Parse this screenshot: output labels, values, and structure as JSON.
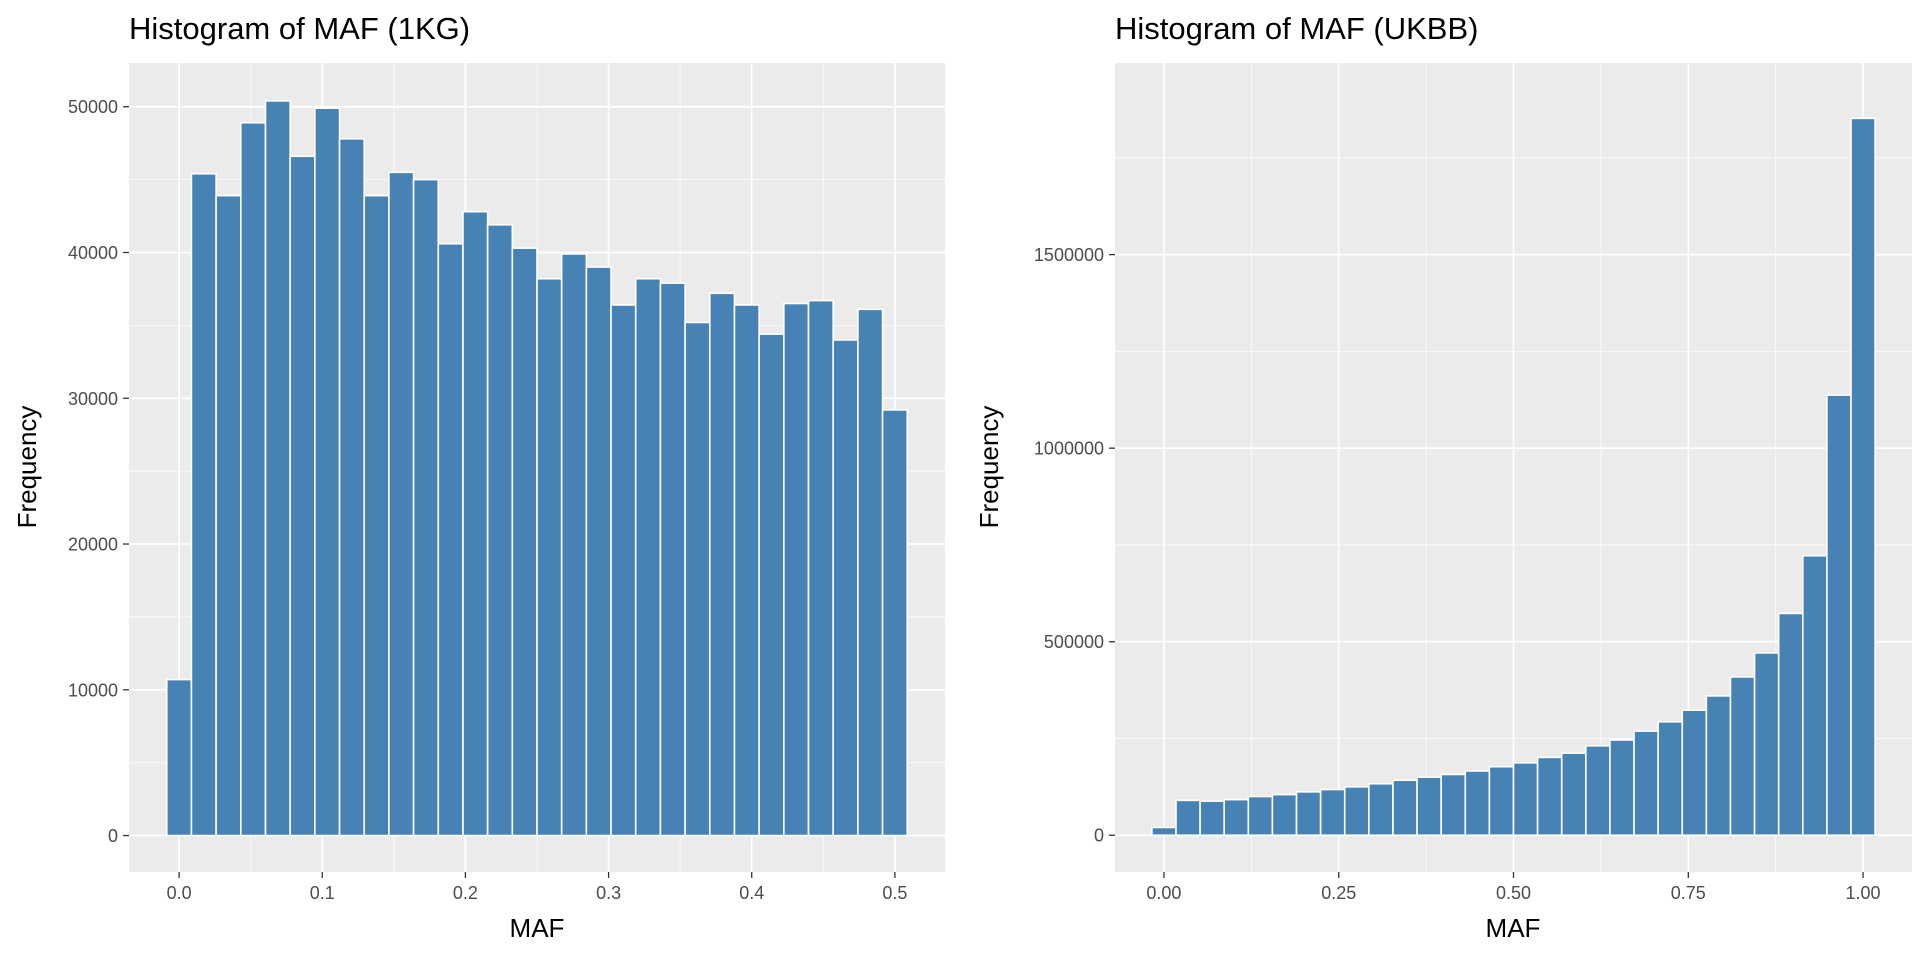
{
  "chart_data": [
    {
      "type": "bar",
      "title": "Histogram of MAF (1KG)",
      "xlabel": "MAF",
      "ylabel": "Frequency",
      "xlim": [
        -0.035,
        0.535
      ],
      "ylim": [
        -2500,
        53000
      ],
      "x_breaks": [
        0.0,
        0.1,
        0.2,
        0.3,
        0.4,
        0.5
      ],
      "x_tick_labels": [
        "0.0",
        "0.1",
        "0.2",
        "0.3",
        "0.4",
        "0.5"
      ],
      "y_breaks": [
        0,
        10000,
        20000,
        30000,
        40000,
        50000
      ],
      "y_tick_labels": [
        "0",
        "10000",
        "20000",
        "30000",
        "40000",
        "50000"
      ],
      "bin_width": 0.01724,
      "bin_centers": [
        0.0,
        0.01724,
        0.03448,
        0.05172,
        0.06897,
        0.08621,
        0.10345,
        0.12069,
        0.13793,
        0.15517,
        0.17241,
        0.18966,
        0.2069,
        0.22414,
        0.24138,
        0.25862,
        0.27586,
        0.2931,
        0.31034,
        0.32759,
        0.34483,
        0.36207,
        0.37931,
        0.39655,
        0.41379,
        0.43103,
        0.44828,
        0.46552,
        0.48276,
        0.5
      ],
      "values": [
        10700,
        45400,
        43900,
        48900,
        50400,
        46600,
        49900,
        47800,
        43900,
        45500,
        45000,
        40600,
        42800,
        41900,
        40300,
        38200,
        39900,
        39000,
        36400,
        38200,
        37900,
        35200,
        37200,
        36400,
        34400,
        36500,
        36700,
        34000,
        36100,
        29200
      ],
      "bar_color": "#4682b4",
      "panel_bg": "#ebebeb",
      "grid": true
    },
    {
      "type": "bar",
      "title": "Histogram of MAF (UKBB)",
      "xlabel": "MAF",
      "ylabel": "Frequency",
      "xlim": [
        -0.07,
        1.07
      ],
      "ylim": [
        -95000,
        1995000
      ],
      "x_breaks": [
        0.0,
        0.25,
        0.5,
        0.75,
        1.0
      ],
      "x_tick_labels": [
        "0.00",
        "0.25",
        "0.50",
        "0.75",
        "1.00"
      ],
      "y_breaks": [
        0,
        500000,
        1000000,
        1500000
      ],
      "y_tick_labels": [
        "0",
        "500000",
        "1000000",
        "1500000"
      ],
      "bin_width": 0.03448,
      "bin_centers": [
        0.0,
        0.03448,
        0.06897,
        0.10345,
        0.13793,
        0.17241,
        0.2069,
        0.24138,
        0.27586,
        0.31034,
        0.34483,
        0.37931,
        0.41379,
        0.44828,
        0.48276,
        0.51724,
        0.55172,
        0.58621,
        0.62069,
        0.65517,
        0.68966,
        0.72414,
        0.75862,
        0.7931,
        0.82759,
        0.86207,
        0.89655,
        0.93103,
        0.96552,
        1.0
      ],
      "values": [
        20000,
        90000,
        88000,
        92000,
        100000,
        105000,
        112000,
        118000,
        125000,
        133000,
        142000,
        150000,
        157000,
        166000,
        177000,
        187000,
        201000,
        212000,
        231000,
        246000,
        269000,
        293000,
        323000,
        360000,
        409000,
        471000,
        573000,
        722000,
        1137000,
        1852000
      ],
      "bar_color": "#4682b4",
      "panel_bg": "#ebebeb",
      "grid": true
    }
  ]
}
